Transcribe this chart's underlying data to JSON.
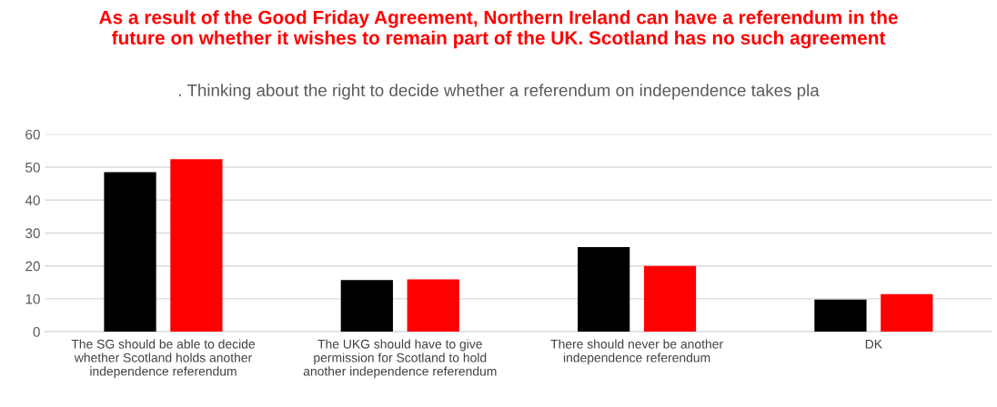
{
  "chart_data": {
    "type": "bar",
    "title": "As a result of the Good Friday Agreement, Northern Ireland can have a referendum in the future on whether it wishes to remain part of the UK. Scotland has no such agreement",
    "subtitle": ". Thinking about the right to decide whether a referendum on independence takes pla",
    "categories": [
      "The SG should be able to decide whether Scotland holds another independence referendum",
      "The UKG should have to give permission for Scotland to hold another independence referendum",
      "There should never be another independence referendum",
      "DK"
    ],
    "series": [
      {
        "color": "#000000",
        "values": [
          48.5,
          15.7,
          25.7,
          9.8
        ]
      },
      {
        "color": "#ff0000",
        "values": [
          52.4,
          15.9,
          20.0,
          11.4
        ]
      }
    ],
    "ylim": [
      0,
      60
    ],
    "yticks": [
      0,
      10,
      20,
      30,
      40,
      50,
      60
    ],
    "grid": "y"
  }
}
